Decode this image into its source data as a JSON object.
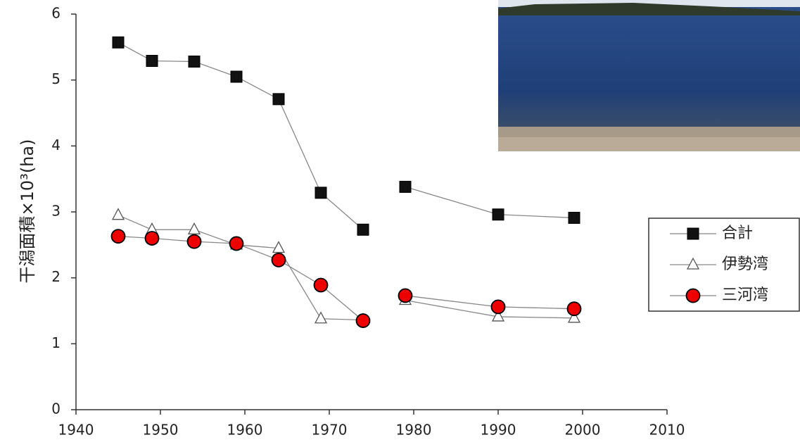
{
  "chart_data": {
    "type": "line",
    "y_label": "干潟面積×10³(ha)",
    "x": [
      1945,
      1949,
      1954,
      1959,
      1964,
      1969,
      1974,
      null,
      1979,
      1990,
      1999
    ],
    "xlim": [
      1940,
      2010
    ],
    "xticks": [
      1940,
      1950,
      1960,
      1970,
      1980,
      1990,
      2000,
      2010
    ],
    "ylim": [
      0,
      6
    ],
    "yticks": [
      0,
      1,
      2,
      3,
      4,
      5,
      6
    ],
    "legend": "right",
    "series": [
      {
        "name": "合計",
        "color": "#111111",
        "marker": "square",
        "values": [
          5.57,
          5.29,
          5.28,
          5.05,
          4.71,
          3.29,
          2.73,
          null,
          3.38,
          2.96,
          2.91
        ]
      },
      {
        "name": "伊勢湾",
        "color": "#ffffff",
        "marker": "triangle",
        "values": [
          2.95,
          2.73,
          2.73,
          2.5,
          2.45,
          1.38,
          1.36,
          null,
          1.66,
          1.41,
          1.39
        ]
      },
      {
        "name": "三河湾",
        "color": "#ee0000",
        "marker": "circle",
        "values": [
          2.63,
          2.6,
          2.55,
          2.52,
          2.27,
          1.89,
          1.35,
          null,
          1.73,
          1.56,
          1.53
        ]
      }
    ]
  }
}
